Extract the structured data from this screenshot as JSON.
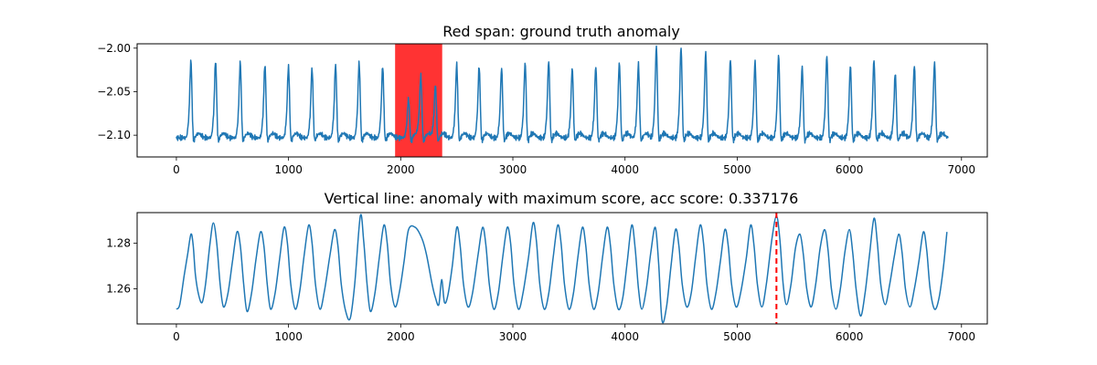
{
  "chart_data": [
    {
      "type": "line",
      "title": "Red span: ground truth anomaly",
      "xlabel": "",
      "ylabel": "",
      "xlim": [
        -350,
        7230
      ],
      "ylim": [
        -2.125,
        -1.995
      ],
      "x_ticks": [
        0,
        1000,
        2000,
        3000,
        4000,
        5000,
        6000,
        7000
      ],
      "y_ticks": [
        -2.0,
        -2.05,
        -2.1
      ],
      "y_tick_labels": [
        "−2.00",
        "−2.05",
        "−2.10"
      ],
      "grid": false,
      "colors": {
        "series": "#1f77b4",
        "span": "#ff0000"
      },
      "span": {
        "start": 1950,
        "end": 2370
      },
      "baseline": -2.103,
      "series": [
        {
          "beats": [
            [
              130,
              -2.018
            ],
            [
              350,
              -2.018
            ],
            [
              570,
              -2.02
            ],
            [
              790,
              -2.022
            ],
            [
              1000,
              -2.024
            ],
            [
              1210,
              -2.026
            ],
            [
              1420,
              -2.022
            ],
            [
              1630,
              -2.02
            ],
            [
              1840,
              -2.024
            ],
            [
              2070,
              -2.06
            ],
            [
              2180,
              -2.035
            ],
            [
              2310,
              -2.045
            ],
            [
              2500,
              -2.022
            ],
            [
              2700,
              -2.024
            ],
            [
              2900,
              -2.026
            ],
            [
              3110,
              -2.02
            ],
            [
              3320,
              -2.018
            ],
            [
              3530,
              -2.026
            ],
            [
              3740,
              -2.024
            ],
            [
              3950,
              -2.02
            ],
            [
              4120,
              -2.022
            ],
            [
              4280,
              -2.002
            ],
            [
              4500,
              -2.003
            ],
            [
              4720,
              -2.009
            ],
            [
              4940,
              -2.016
            ],
            [
              5160,
              -2.019
            ],
            [
              5370,
              -2.012
            ],
            [
              5580,
              -2.025
            ],
            [
              5800,
              -2.012
            ],
            [
              6010,
              -2.023
            ],
            [
              6220,
              -2.017
            ],
            [
              6410,
              -2.032
            ],
            [
              6580,
              -2.023
            ],
            [
              6760,
              -2.02
            ]
          ]
        }
      ]
    },
    {
      "type": "line",
      "title": "Vertical line: anomaly with maximum score, acc score: 0.337176",
      "xlabel": "",
      "ylabel": "",
      "xlim": [
        -350,
        7230
      ],
      "ylim": [
        1.2445,
        1.2935
      ],
      "x_ticks": [
        0,
        1000,
        2000,
        3000,
        4000,
        5000,
        6000,
        7000
      ],
      "y_ticks": [
        1.26,
        1.28
      ],
      "y_tick_labels": [
        "1.26",
        "1.28"
      ],
      "grid": false,
      "colors": {
        "series": "#1f77b4",
        "vline": "#ff0000"
      },
      "vline": {
        "x": 5350,
        "style": "dashed"
      },
      "series": [
        {
          "points": [
            [
              0,
              1.251
            ],
            [
              30,
              1.253
            ],
            [
              70,
              1.266
            ],
            [
              100,
              1.275
            ],
            [
              130,
              1.284
            ],
            [
              150,
              1.279
            ],
            [
              170,
              1.266
            ],
            [
              200,
              1.257
            ],
            [
              230,
              1.254
            ],
            [
              260,
              1.262
            ],
            [
              300,
              1.28
            ],
            [
              330,
              1.289
            ],
            [
              360,
              1.28
            ],
            [
              390,
              1.262
            ],
            [
              420,
              1.252
            ],
            [
              460,
              1.258
            ],
            [
              500,
              1.272
            ],
            [
              540,
              1.285
            ],
            [
              570,
              1.279
            ],
            [
              600,
              1.262
            ],
            [
              630,
              1.25
            ],
            [
              670,
              1.258
            ],
            [
              710,
              1.273
            ],
            [
              750,
              1.285
            ],
            [
              780,
              1.279
            ],
            [
              810,
              1.262
            ],
            [
              840,
              1.251
            ],
            [
              880,
              1.258
            ],
            [
              920,
              1.273
            ],
            [
              960,
              1.287
            ],
            [
              990,
              1.28
            ],
            [
              1020,
              1.262
            ],
            [
              1060,
              1.251
            ],
            [
              1100,
              1.259
            ],
            [
              1140,
              1.275
            ],
            [
              1180,
              1.288
            ],
            [
              1210,
              1.28
            ],
            [
              1240,
              1.262
            ],
            [
              1280,
              1.251
            ],
            [
              1320,
              1.259
            ],
            [
              1370,
              1.275
            ],
            [
              1410,
              1.286
            ],
            [
              1440,
              1.279
            ],
            [
              1470,
              1.262
            ],
            [
              1510,
              1.25
            ],
            [
              1550,
              1.247
            ],
            [
              1590,
              1.262
            ],
            [
              1640,
              1.292
            ],
            [
              1670,
              1.281
            ],
            [
              1700,
              1.262
            ],
            [
              1730,
              1.25
            ],
            [
              1770,
              1.258
            ],
            [
              1810,
              1.274
            ],
            [
              1850,
              1.288
            ],
            [
              1880,
              1.28
            ],
            [
              1910,
              1.262
            ],
            [
              1950,
              1.252
            ],
            [
              1990,
              1.259
            ],
            [
              2030,
              1.272
            ],
            [
              2070,
              1.286
            ],
            [
              2130,
              1.287
            ],
            [
              2190,
              1.282
            ],
            [
              2230,
              1.275
            ],
            [
              2280,
              1.262
            ],
            [
              2310,
              1.256
            ],
            [
              2340,
              1.253
            ],
            [
              2365,
              1.264
            ],
            [
              2390,
              1.254
            ],
            [
              2420,
              1.257
            ],
            [
              2460,
              1.27
            ],
            [
              2500,
              1.287
            ],
            [
              2530,
              1.279
            ],
            [
              2560,
              1.262
            ],
            [
              2600,
              1.252
            ],
            [
              2640,
              1.258
            ],
            [
              2690,
              1.275
            ],
            [
              2730,
              1.287
            ],
            [
              2760,
              1.279
            ],
            [
              2790,
              1.262
            ],
            [
              2830,
              1.251
            ],
            [
              2870,
              1.258
            ],
            [
              2910,
              1.274
            ],
            [
              2950,
              1.287
            ],
            [
              2980,
              1.28
            ],
            [
              3010,
              1.262
            ],
            [
              3050,
              1.251
            ],
            [
              3090,
              1.258
            ],
            [
              3140,
              1.274
            ],
            [
              3180,
              1.289
            ],
            [
              3210,
              1.281
            ],
            [
              3240,
              1.262
            ],
            [
              3280,
              1.251
            ],
            [
              3320,
              1.258
            ],
            [
              3360,
              1.274
            ],
            [
              3400,
              1.288
            ],
            [
              3430,
              1.28
            ],
            [
              3460,
              1.262
            ],
            [
              3500,
              1.251
            ],
            [
              3540,
              1.258
            ],
            [
              3580,
              1.274
            ],
            [
              3620,
              1.287
            ],
            [
              3650,
              1.279
            ],
            [
              3680,
              1.262
            ],
            [
              3720,
              1.251
            ],
            [
              3760,
              1.258
            ],
            [
              3800,
              1.274
            ],
            [
              3840,
              1.287
            ],
            [
              3870,
              1.279
            ],
            [
              3900,
              1.262
            ],
            [
              3940,
              1.251
            ],
            [
              3980,
              1.256
            ],
            [
              4020,
              1.272
            ],
            [
              4060,
              1.288
            ],
            [
              4090,
              1.278
            ],
            [
              4120,
              1.26
            ],
            [
              4150,
              1.251
            ],
            [
              4190,
              1.26
            ],
            [
              4230,
              1.276
            ],
            [
              4270,
              1.287
            ],
            [
              4300,
              1.271
            ],
            [
              4330,
              1.246
            ],
            [
              4370,
              1.252
            ],
            [
              4410,
              1.27
            ],
            [
              4450,
              1.286
            ],
            [
              4480,
              1.279
            ],
            [
              4510,
              1.262
            ],
            [
              4550,
              1.252
            ],
            [
              4590,
              1.258
            ],
            [
              4630,
              1.274
            ],
            [
              4670,
              1.288
            ],
            [
              4700,
              1.28
            ],
            [
              4730,
              1.262
            ],
            [
              4770,
              1.251
            ],
            [
              4810,
              1.258
            ],
            [
              4850,
              1.272
            ],
            [
              4890,
              1.286
            ],
            [
              4920,
              1.279
            ],
            [
              4950,
              1.262
            ],
            [
              4990,
              1.252
            ],
            [
              5030,
              1.258
            ],
            [
              5080,
              1.273
            ],
            [
              5120,
              1.288
            ],
            [
              5150,
              1.279
            ],
            [
              5180,
              1.262
            ],
            [
              5220,
              1.252
            ],
            [
              5260,
              1.262
            ],
            [
              5310,
              1.282
            ],
            [
              5350,
              1.292
            ],
            [
              5380,
              1.282
            ],
            [
              5410,
              1.262
            ],
            [
              5440,
              1.253
            ],
            [
              5480,
              1.262
            ],
            [
              5520,
              1.278
            ],
            [
              5560,
              1.284
            ],
            [
              5590,
              1.275
            ],
            [
              5620,
              1.26
            ],
            [
              5660,
              1.252
            ],
            [
              5700,
              1.262
            ],
            [
              5740,
              1.278
            ],
            [
              5780,
              1.286
            ],
            [
              5810,
              1.277
            ],
            [
              5840,
              1.26
            ],
            [
              5880,
              1.251
            ],
            [
              5920,
              1.26
            ],
            [
              5960,
              1.276
            ],
            [
              6000,
              1.286
            ],
            [
              6030,
              1.276
            ],
            [
              6060,
              1.26
            ],
            [
              6100,
              1.248
            ],
            [
              6140,
              1.258
            ],
            [
              6180,
              1.275
            ],
            [
              6220,
              1.291
            ],
            [
              6250,
              1.28
            ],
            [
              6280,
              1.262
            ],
            [
              6320,
              1.253
            ],
            [
              6360,
              1.262
            ],
            [
              6400,
              1.274
            ],
            [
              6440,
              1.284
            ],
            [
              6470,
              1.276
            ],
            [
              6500,
              1.26
            ],
            [
              6540,
              1.252
            ],
            [
              6580,
              1.26
            ],
            [
              6620,
              1.272
            ],
            [
              6660,
              1.285
            ],
            [
              6690,
              1.277
            ],
            [
              6720,
              1.26
            ],
            [
              6760,
              1.251
            ],
            [
              6800,
              1.256
            ],
            [
              6840,
              1.27
            ],
            [
              6870,
              1.285
            ]
          ]
        }
      ]
    }
  ]
}
